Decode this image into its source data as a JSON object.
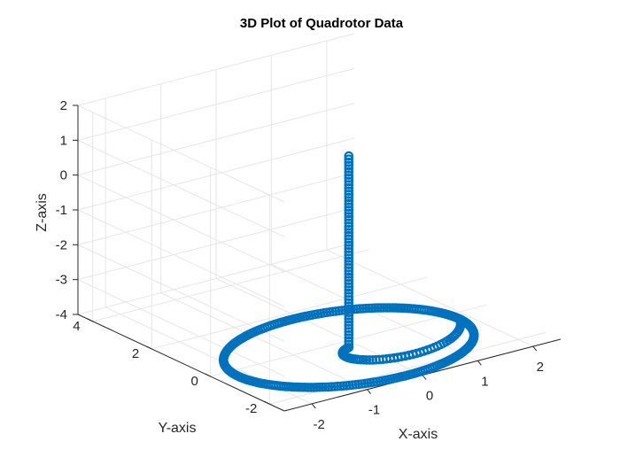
{
  "chart_data": {
    "type": "scatter",
    "plot_type": "3d-scatter",
    "title": "3D Plot of Quadrotor Data",
    "xlabel": "X-axis",
    "ylabel": "Y-axis",
    "zlabel": "Z-axis",
    "xlim": [
      -2.5,
      2.5
    ],
    "ylim": [
      -2.5,
      4.5
    ],
    "zlim": [
      -4,
      2
    ],
    "xticks": [
      "-2",
      "-1",
      "0",
      "1",
      "2"
    ],
    "yticks": [
      "-2",
      "0",
      "2",
      "4"
    ],
    "zticks": [
      "-4",
      "-3",
      "-2",
      "-1",
      "0",
      "1",
      "2"
    ],
    "grid": true,
    "marker": "open-circle",
    "series": [
      {
        "color": "#0072BD",
        "segments": [
          {
            "part": "vertical climb",
            "x": 0,
            "y": 0,
            "z": [
              -4.2,
              1.3
            ]
          },
          {
            "part": "spiral turn",
            "x": [
              0,
              2
            ],
            "y": [
              0,
              0
            ],
            "z": -4.2
          },
          {
            "part": "circular orbit",
            "center_x": 0,
            "center_y": 0,
            "radius": 2,
            "z": -4.2
          }
        ]
      }
    ]
  }
}
